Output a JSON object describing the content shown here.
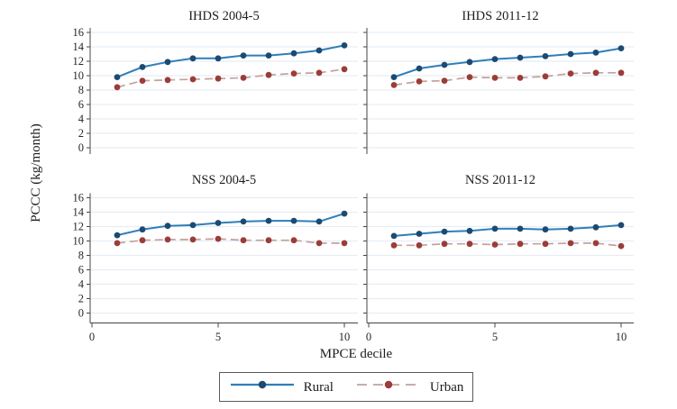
{
  "figure": {
    "ylabel": "PCCC (kg/month)",
    "xlabel": "MPCE decile"
  },
  "axes": {
    "ylim": [
      0,
      16
    ],
    "xlim": [
      0,
      10.5
    ],
    "y_ticks": [
      0,
      2,
      4,
      6,
      8,
      10,
      12,
      14,
      16
    ],
    "x_ticks": [
      0,
      5,
      10
    ],
    "grid": true
  },
  "colors": {
    "rural_line": "#2e7fba",
    "rural_marker": "#1b4a72",
    "urban_line": "#c3a19e",
    "urban_marker": "#9c3c39",
    "gridline": "#e8edf4",
    "axis": "#454545",
    "text": "#262626",
    "background": "#ffffff",
    "legend_border": "#5a5a5a"
  },
  "legend": {
    "position": "bottom",
    "items": [
      {
        "label": "Rural",
        "line_color": "#2e7fba",
        "marker_color": "#1b4a72",
        "dashed": false
      },
      {
        "label": "Urban",
        "line_color": "#c3a19e",
        "marker_color": "#9c3c39",
        "dashed": true
      }
    ]
  },
  "chart_data": [
    {
      "type": "line",
      "title": "IHDS 2004-5",
      "x": [
        1,
        2,
        3,
        4,
        5,
        6,
        7,
        8,
        9,
        10
      ],
      "series": [
        {
          "name": "Rural",
          "values": [
            9.8,
            11.2,
            11.9,
            12.4,
            12.4,
            12.8,
            12.8,
            13.1,
            13.5,
            14.2
          ]
        },
        {
          "name": "Urban",
          "values": [
            8.4,
            9.3,
            9.4,
            9.5,
            9.6,
            9.7,
            10.1,
            10.3,
            10.4,
            10.9
          ]
        }
      ]
    },
    {
      "type": "line",
      "title": "IHDS 2011-12",
      "x": [
        1,
        2,
        3,
        4,
        5,
        6,
        7,
        8,
        9,
        10
      ],
      "series": [
        {
          "name": "Rural",
          "values": [
            9.8,
            11.0,
            11.5,
            11.9,
            12.3,
            12.5,
            12.7,
            13.0,
            13.2,
            13.8
          ]
        },
        {
          "name": "Urban",
          "values": [
            8.7,
            9.2,
            9.3,
            9.8,
            9.7,
            9.7,
            9.9,
            10.3,
            10.4,
            10.4
          ]
        }
      ]
    },
    {
      "type": "line",
      "title": "NSS 2004-5",
      "x": [
        1,
        2,
        3,
        4,
        5,
        6,
        7,
        8,
        9,
        10
      ],
      "series": [
        {
          "name": "Rural",
          "values": [
            10.8,
            11.6,
            12.1,
            12.2,
            12.5,
            12.7,
            12.8,
            12.8,
            12.7,
            13.8
          ]
        },
        {
          "name": "Urban",
          "values": [
            9.7,
            10.1,
            10.2,
            10.2,
            10.3,
            10.1,
            10.1,
            10.1,
            9.7,
            9.7
          ]
        }
      ]
    },
    {
      "type": "line",
      "title": "NSS 2011-12",
      "x": [
        1,
        2,
        3,
        4,
        5,
        6,
        7,
        8,
        9,
        10
      ],
      "series": [
        {
          "name": "Rural",
          "values": [
            10.7,
            11.0,
            11.3,
            11.4,
            11.7,
            11.7,
            11.6,
            11.7,
            11.9,
            12.2
          ]
        },
        {
          "name": "Urban",
          "values": [
            9.4,
            9.4,
            9.6,
            9.6,
            9.5,
            9.6,
            9.6,
            9.7,
            9.7,
            9.3
          ]
        }
      ]
    }
  ]
}
